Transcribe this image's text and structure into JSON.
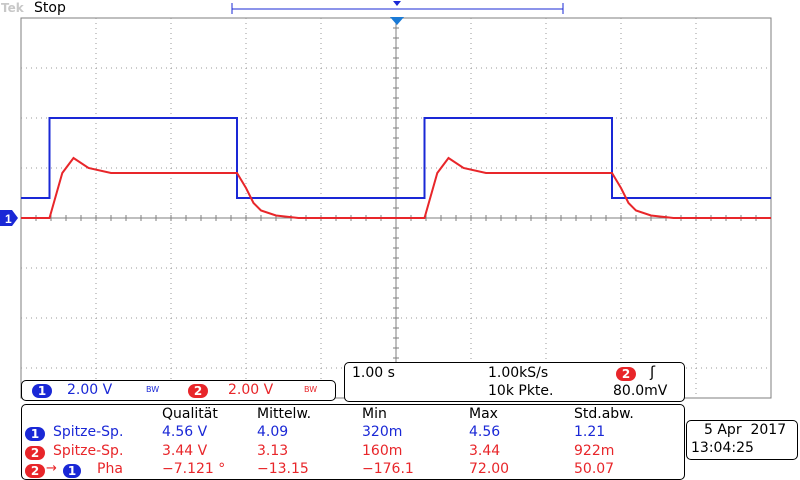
{
  "app": {
    "brand": "Tek",
    "acq_status": "Stop"
  },
  "colors": {
    "ch1": "#1a28d6",
    "ch2": "#e8262a",
    "grid": "#7f7f7f"
  },
  "chart_data": {
    "type": "line",
    "title": "",
    "xlabel": "",
    "ylabel": "",
    "xlim": [
      -5,
      5
    ],
    "ylim": [
      -4,
      4
    ],
    "grid": true,
    "x_units": "divisions",
    "y_units": "divisions",
    "series": [
      {
        "name": "1",
        "color": "#1a28d6",
        "x": [
          -5,
          -4.62,
          -4.62,
          -2.12,
          -2.12,
          0.38,
          0.38,
          2.88,
          2.88,
          5
        ],
        "y": [
          0.4,
          0.4,
          2.0,
          2.0,
          0.4,
          0.4,
          2.0,
          2.0,
          0.4,
          0.4
        ]
      },
      {
        "name": "2",
        "color": "#e8262a",
        "x": [
          -5,
          -4.62,
          -4.45,
          -4.3,
          -4.1,
          -3.8,
          -2.12,
          -2.0,
          -1.9,
          -1.8,
          -1.6,
          -1.3,
          0.38,
          0.55,
          0.7,
          0.9,
          1.2,
          2.88,
          3.0,
          3.1,
          3.2,
          3.4,
          3.7,
          5
        ],
        "y": [
          0.0,
          0.0,
          0.9,
          1.2,
          1.0,
          0.9,
          0.9,
          0.6,
          0.3,
          0.15,
          0.05,
          0.0,
          0.0,
          0.9,
          1.2,
          1.0,
          0.9,
          0.9,
          0.6,
          0.3,
          0.15,
          0.05,
          0.0,
          0.0
        ]
      }
    ]
  },
  "markers": {
    "ch1_ground_label": "1"
  },
  "channels": {
    "ch1": {
      "num": "1",
      "scale": "2.00 V",
      "bw": "BW"
    },
    "ch2": {
      "num": "2",
      "scale": "2.00 V",
      "bw": "BW"
    }
  },
  "horizontal": {
    "timebase": "1.00 s",
    "sample_rate": "1.00kS/s",
    "record_length": "10k Pkte.",
    "trigger_source": "2",
    "trigger_slope_icon": "rising-edge-icon",
    "trigger_slope_glyph": "ʃ",
    "trigger_level": "80.0mV"
  },
  "measurements": {
    "headers": [
      "Qualität",
      "Mittelw.",
      "Min",
      "Max",
      "Std.abw."
    ],
    "rows": [
      {
        "badge": "1",
        "badge2": "",
        "name": "Spitze-Sp.",
        "color": "#1a28d6",
        "values": [
          "4.56 V",
          "4.09",
          "320m",
          "4.56",
          "1.21"
        ]
      },
      {
        "badge": "2",
        "badge2": "",
        "name": "Spitze-Sp.",
        "color": "#e8262a",
        "values": [
          "3.44 V",
          "3.13",
          "160m",
          "3.44",
          "922m"
        ]
      },
      {
        "badge": "2",
        "badge2": "1",
        "arrow": "→",
        "name": "Pha",
        "color": "#e8262a",
        "values": [
          "−7.121 °",
          "−13.15",
          "−176.1",
          "72.00",
          "50.07"
        ]
      }
    ]
  },
  "datetime": {
    "date": "5 Apr  2017",
    "time": "13:04:25"
  }
}
